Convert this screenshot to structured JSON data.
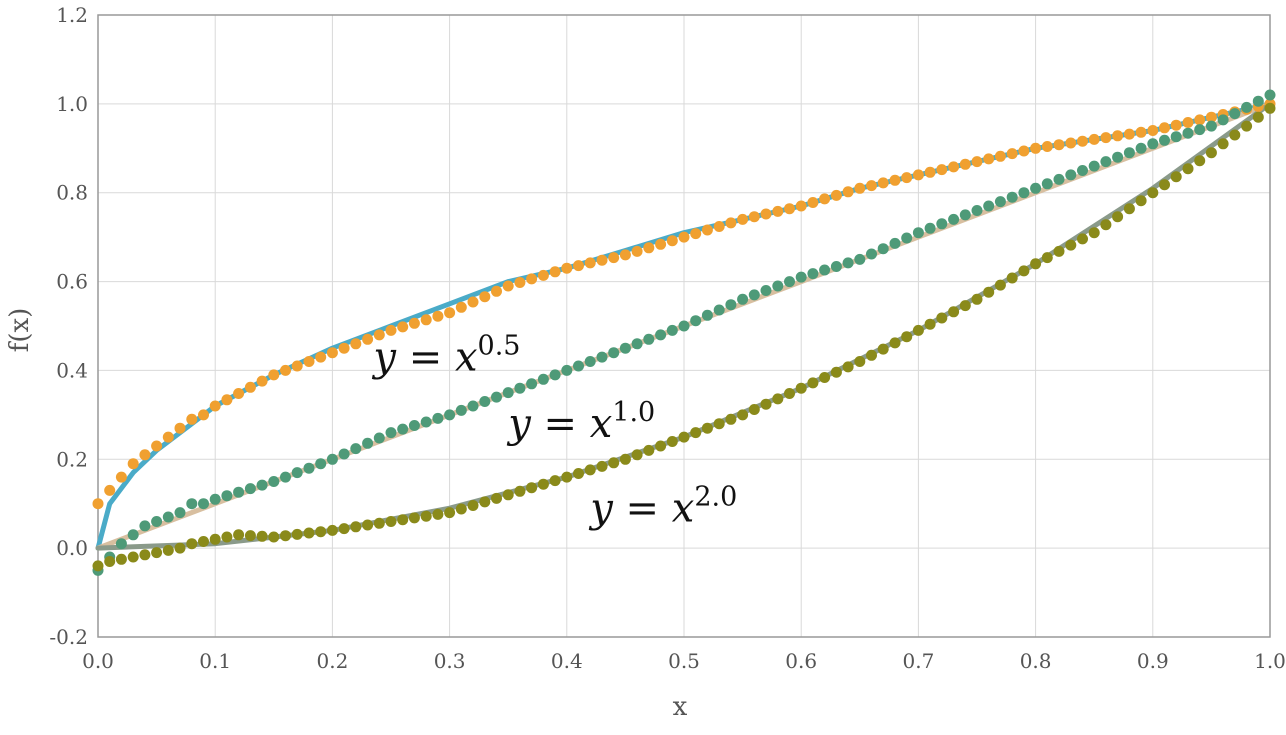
{
  "chart_data": {
    "type": "line",
    "xlabel": "x",
    "ylabel": "f(x)",
    "xlim": [
      0.0,
      1.0
    ],
    "ylim": [
      -0.2,
      1.2
    ],
    "x_ticks": [
      "0.0",
      "0.1",
      "0.2",
      "0.3",
      "0.4",
      "0.5",
      "0.6",
      "0.7",
      "0.8",
      "0.9",
      "1.0"
    ],
    "y_ticks": [
      "-0.2",
      "0.0",
      "0.2",
      "0.4",
      "0.6",
      "0.8",
      "1.0",
      "1.2"
    ],
    "grid": true,
    "annotations": [
      {
        "base": "y = x",
        "exponent": "0.5",
        "x": 0.235,
        "y": 0.4
      },
      {
        "base": "y = x",
        "exponent": "1.0",
        "x": 0.35,
        "y": 0.25
      },
      {
        "base": "y = x",
        "exponent": "2.0",
        "x": 0.42,
        "y": 0.06
      }
    ],
    "series": [
      {
        "exponent": 0.5,
        "style": "line",
        "color": "#4aabc8",
        "x": [
          0,
          0.01,
          0.03,
          0.05,
          0.08,
          0.1,
          0.15,
          0.2,
          0.25,
          0.3,
          0.35,
          0.4,
          0.45,
          0.5,
          0.55,
          0.6,
          0.65,
          0.7,
          0.75,
          0.8,
          0.85,
          0.9,
          0.95,
          1.0
        ],
        "y": [
          0,
          0.1,
          0.17,
          0.22,
          0.28,
          0.32,
          0.39,
          0.45,
          0.5,
          0.55,
          0.6,
          0.63,
          0.67,
          0.71,
          0.74,
          0.77,
          0.81,
          0.84,
          0.87,
          0.9,
          0.92,
          0.94,
          0.97,
          1.0
        ]
      },
      {
        "exponent": 1.0,
        "style": "line",
        "color": "#d8bfa0",
        "x": [
          0,
          0.1,
          0.2,
          0.3,
          0.4,
          0.5,
          0.6,
          0.7,
          0.8,
          0.9,
          1.0
        ],
        "y": [
          0,
          0.1,
          0.2,
          0.3,
          0.4,
          0.5,
          0.6,
          0.7,
          0.8,
          0.9,
          1.0
        ]
      },
      {
        "exponent": 2.0,
        "style": "line",
        "color": "#8a9a8a",
        "x": [
          0,
          0.1,
          0.2,
          0.3,
          0.4,
          0.5,
          0.6,
          0.7,
          0.8,
          0.9,
          1.0
        ],
        "y": [
          0,
          0.01,
          0.04,
          0.09,
          0.16,
          0.25,
          0.36,
          0.49,
          0.64,
          0.81,
          1.0
        ]
      },
      {
        "exponent": 0.5,
        "style": "points",
        "color": "#f0a030",
        "x": [
          0,
          0.01,
          0.02,
          0.03,
          0.04,
          0.05,
          0.06,
          0.07,
          0.08,
          0.09,
          0.1,
          0.15,
          0.2,
          0.25,
          0.3,
          0.35,
          0.4,
          0.45,
          0.5,
          0.55,
          0.6,
          0.65,
          0.7,
          0.75,
          0.8,
          0.85,
          0.9,
          0.95,
          1.0
        ],
        "y": [
          0.1,
          0.13,
          0.16,
          0.19,
          0.21,
          0.23,
          0.25,
          0.27,
          0.29,
          0.3,
          0.32,
          0.39,
          0.44,
          0.49,
          0.53,
          0.59,
          0.63,
          0.66,
          0.7,
          0.74,
          0.77,
          0.81,
          0.84,
          0.87,
          0.9,
          0.92,
          0.94,
          0.97,
          1.0
        ]
      },
      {
        "exponent": 1.0,
        "style": "points",
        "color": "#4e9a78",
        "x": [
          0,
          0.01,
          0.02,
          0.03,
          0.04,
          0.05,
          0.06,
          0.07,
          0.08,
          0.09,
          0.1,
          0.15,
          0.2,
          0.25,
          0.3,
          0.35,
          0.4,
          0.45,
          0.5,
          0.55,
          0.6,
          0.65,
          0.7,
          0.75,
          0.8,
          0.85,
          0.9,
          0.95,
          1.0
        ],
        "y": [
          -0.05,
          -0.02,
          0.01,
          0.03,
          0.05,
          0.06,
          0.07,
          0.08,
          0.1,
          0.1,
          0.11,
          0.15,
          0.2,
          0.26,
          0.3,
          0.35,
          0.4,
          0.45,
          0.5,
          0.56,
          0.61,
          0.65,
          0.71,
          0.76,
          0.81,
          0.86,
          0.91,
          0.95,
          1.02
        ]
      },
      {
        "exponent": 2.0,
        "style": "points",
        "color": "#8a8a1a",
        "x": [
          0,
          0.01,
          0.02,
          0.03,
          0.04,
          0.05,
          0.06,
          0.07,
          0.08,
          0.09,
          0.1,
          0.12,
          0.15,
          0.2,
          0.25,
          0.3,
          0.35,
          0.4,
          0.45,
          0.5,
          0.55,
          0.6,
          0.65,
          0.7,
          0.75,
          0.8,
          0.85,
          0.9,
          0.95,
          1.0
        ],
        "y": [
          -0.04,
          -0.03,
          -0.025,
          -0.02,
          -0.015,
          -0.01,
          -0.005,
          0.0,
          0.01,
          0.015,
          0.02,
          0.03,
          0.025,
          0.04,
          0.06,
          0.08,
          0.12,
          0.16,
          0.2,
          0.25,
          0.3,
          0.36,
          0.42,
          0.49,
          0.56,
          0.64,
          0.71,
          0.8,
          0.89,
          0.99
        ]
      }
    ]
  },
  "colors": {
    "grid": "#d9d9d9",
    "axis": "#999999"
  }
}
